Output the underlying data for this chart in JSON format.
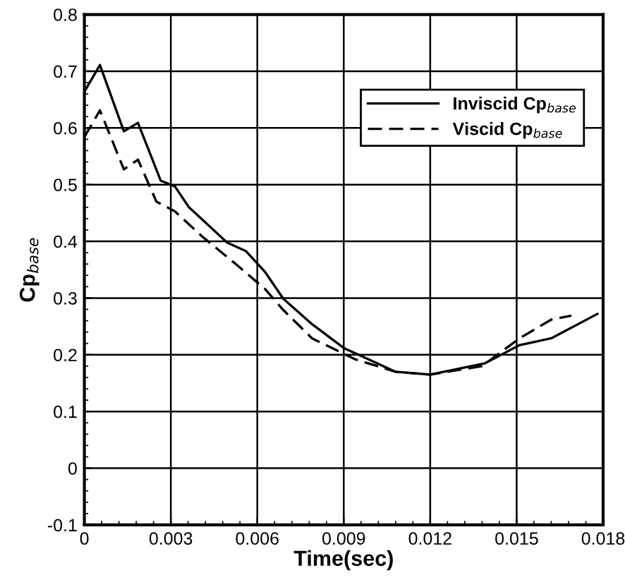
{
  "chart_data": {
    "type": "line",
    "xlabel": "Time(sec)",
    "ylabel": "Cp$_{base}$",
    "xlim": [
      0,
      0.018
    ],
    "ylim": [
      -0.1,
      0.8
    ],
    "xticks": [
      0,
      0.003,
      0.006,
      0.009,
      0.012,
      0.015,
      0.018
    ],
    "yticks": [
      -0.1,
      0,
      0.1,
      0.2,
      0.3,
      0.4,
      0.5,
      0.6,
      0.7,
      0.8
    ],
    "grid": true,
    "legend": "top right",
    "series": [
      {
        "name": "Inviscid Cp$_{base}$",
        "color": "#000000",
        "line_style": "solid",
        "x": [
          0,
          0.00054,
          0.00137,
          0.00186,
          0.00265,
          0.00314,
          0.00363,
          0.00495,
          0.0056,
          0.00627,
          0.0069,
          0.0079,
          0.009,
          0.0108,
          0.012,
          0.0139,
          0.0151,
          0.0162,
          0.0178
        ],
        "values": [
          0.664,
          0.711,
          0.594,
          0.609,
          0.507,
          0.497,
          0.46,
          0.398,
          0.383,
          0.346,
          0.299,
          0.254,
          0.212,
          0.17,
          0.165,
          0.185,
          0.217,
          0.229,
          0.272
        ]
      },
      {
        "name": "Viscid Cp$_{base}$",
        "color": "#000000",
        "line_style": "dashed",
        "x": [
          0,
          0.00054,
          0.00137,
          0.00186,
          0.0025,
          0.00314,
          0.0041,
          0.0053,
          0.00627,
          0.0069,
          0.0079,
          0.0094,
          0.0108,
          0.012,
          0.0138,
          0.0151,
          0.0162,
          0.0169
        ],
        "values": [
          0.584,
          0.631,
          0.527,
          0.544,
          0.47,
          0.453,
          0.408,
          0.358,
          0.316,
          0.279,
          0.229,
          0.192,
          0.17,
          0.165,
          0.18,
          0.229,
          0.262,
          0.269
        ]
      }
    ]
  }
}
